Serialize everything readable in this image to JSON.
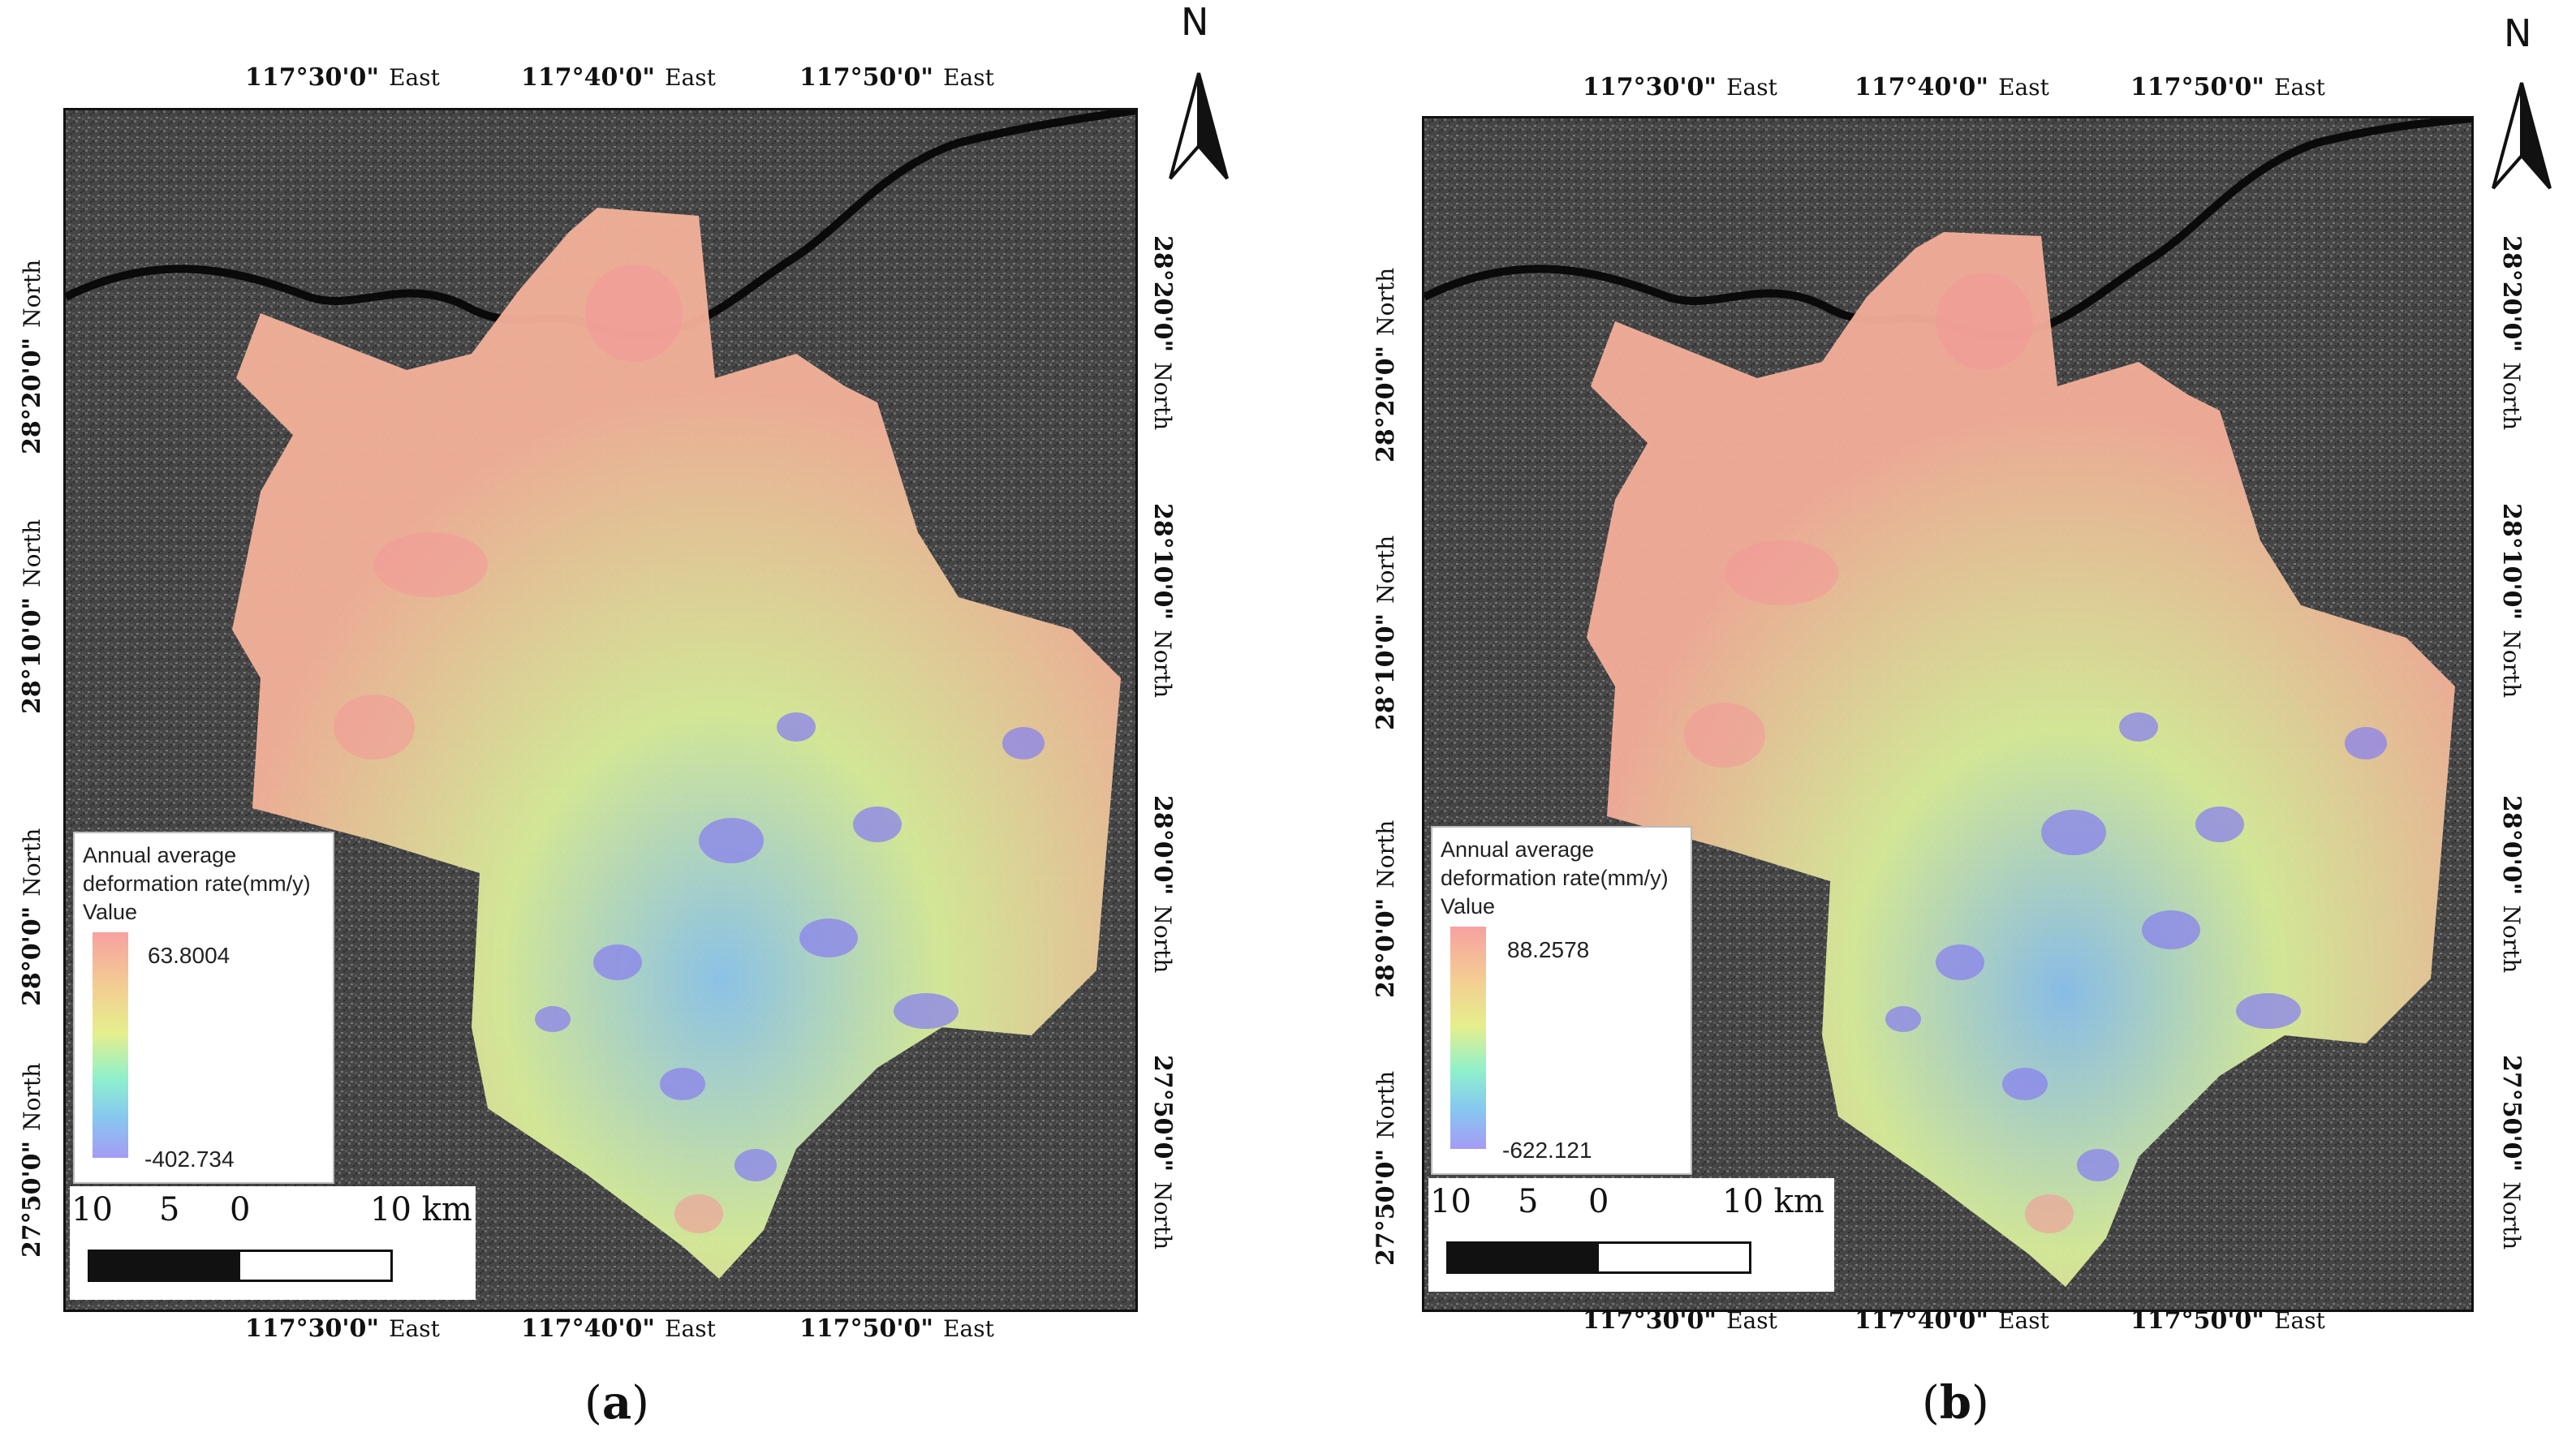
{
  "panels": [
    {
      "caption_letter": "a",
      "north": "N",
      "top_ticks": [
        {
          "coord": "117°30'0\"",
          "dir": "East"
        },
        {
          "coord": "117°40'0\"",
          "dir": "East"
        },
        {
          "coord": "117°50'0\"",
          "dir": "East"
        }
      ],
      "bottom_ticks": [
        {
          "coord": "117°30'0\"",
          "dir": "East"
        },
        {
          "coord": "117°40'0\"",
          "dir": "East"
        },
        {
          "coord": "117°50'0\"",
          "dir": "East"
        }
      ],
      "left_ticks": [
        {
          "coord": "28°20'0\"",
          "dir": "North"
        },
        {
          "coord": "28°10'0\"",
          "dir": "North"
        },
        {
          "coord": "28°0'0\"",
          "dir": "North"
        },
        {
          "coord": "27°50'0\"",
          "dir": "North"
        }
      ],
      "right_ticks": [
        {
          "coord": "28°20'0\"",
          "dir": "North"
        },
        {
          "coord": "28°10'0\"",
          "dir": "North"
        },
        {
          "coord": "28°0'0\"",
          "dir": "North"
        },
        {
          "coord": "27°50'0\"",
          "dir": "North"
        }
      ],
      "legend": {
        "title_line1": "Annual average",
        "title_line2": "deformation rate(mm/y)",
        "value_label": "Value",
        "max": "63.8004",
        "min": "-402.734"
      },
      "scalebar": {
        "labels": [
          "10",
          "5",
          "0",
          "10 km"
        ]
      }
    },
    {
      "caption_letter": "b",
      "north": "N",
      "top_ticks": [
        {
          "coord": "117°30'0\"",
          "dir": "East"
        },
        {
          "coord": "117°40'0\"",
          "dir": "East"
        },
        {
          "coord": "117°50'0\"",
          "dir": "East"
        }
      ],
      "bottom_ticks": [
        {
          "coord": "117°30'0\"",
          "dir": "East"
        },
        {
          "coord": "117°40'0\"",
          "dir": "East"
        },
        {
          "coord": "117°50'0\"",
          "dir": "East"
        }
      ],
      "left_ticks": [
        {
          "coord": "28°20'0\"",
          "dir": "North"
        },
        {
          "coord": "28°10'0\"",
          "dir": "North"
        },
        {
          "coord": "28°0'0\"",
          "dir": "North"
        },
        {
          "coord": "27°50'0\"",
          "dir": "North"
        }
      ],
      "right_ticks": [
        {
          "coord": "28°20'0\"",
          "dir": "North"
        },
        {
          "coord": "28°10'0\"",
          "dir": "North"
        },
        {
          "coord": "28°0'0\"",
          "dir": "North"
        },
        {
          "coord": "27°50'0\"",
          "dir": "North"
        }
      ],
      "legend": {
        "title_line1": "Annual average",
        "title_line2": "deformation rate(mm/y)",
        "value_label": "Value",
        "max": "88.2578",
        "min": "-622.121"
      },
      "scalebar": {
        "labels": [
          "10",
          "5",
          "0",
          "10 km"
        ]
      }
    }
  ],
  "colors": {
    "ramp_high": "#f7a1a0",
    "ramp_mid": "#e5ef8c",
    "ramp_low": "#a49cf6",
    "basemap": "#3f3f3f"
  }
}
